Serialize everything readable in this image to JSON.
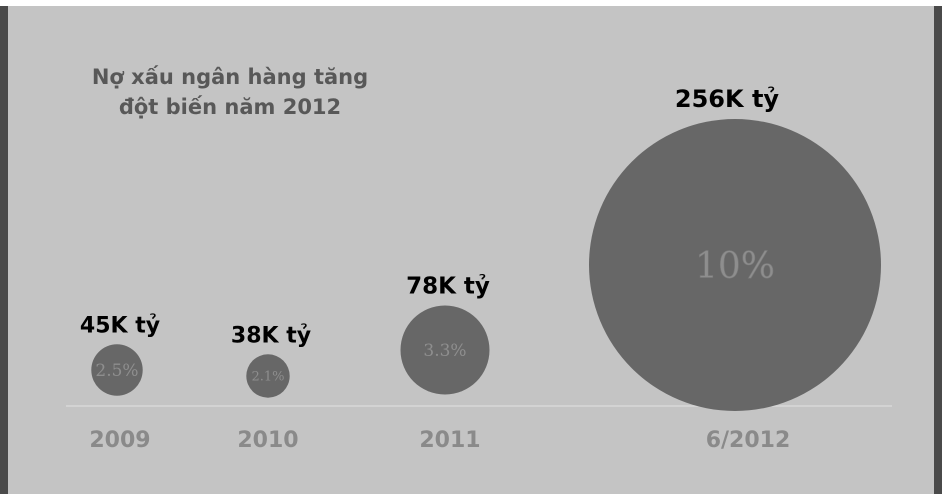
{
  "chart_data": {
    "type": "bubble",
    "title_lines": [
      "Nợ xấu ngân hàng tăng",
      "đột biến năm 2012"
    ],
    "categories": [
      "2009",
      "2010",
      "2011",
      "6/2012"
    ],
    "values": [
      45,
      38,
      78,
      256
    ],
    "value_labels": [
      "45K tỷ",
      "38K tỷ",
      "78K tỷ",
      "256K tỷ"
    ],
    "ratio_labels": [
      "2.5%",
      "2.1%",
      "3.3%",
      "10%"
    ],
    "ratios": [
      2.5,
      2.1,
      3.3,
      10
    ],
    "grid": false,
    "legend": "none"
  },
  "colors": {
    "background": "#c4c4c4",
    "bubble": "#676767",
    "value_label": "#000000",
    "ratio_label": "#8e8e8e",
    "category_label": "#8a8a8a",
    "title": "#585858",
    "baseline": "#d8d8d8",
    "frame_edge": "#4a4a4a"
  }
}
